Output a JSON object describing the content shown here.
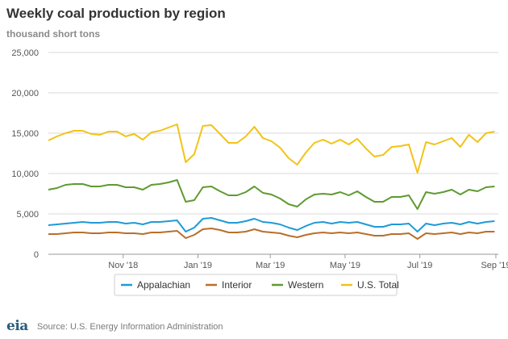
{
  "title": "Weekly coal production by region",
  "subtitle": "thousand short tons",
  "source": "Source: U.S. Energy Information Administration",
  "logo_text": "eia",
  "colors": {
    "Appalachian": "#1f9ad6",
    "Interior": "#b86f2b",
    "Western": "#5f9a32",
    "U.S. Total": "#f2c318",
    "grid": "#d9d9d9",
    "axis_text": "#555555"
  },
  "chart_data": {
    "type": "line",
    "xlabel": "",
    "ylabel": "",
    "ylim": [
      0,
      25000
    ],
    "y_ticks": [
      0,
      5000,
      10000,
      15000,
      20000,
      25000
    ],
    "y_tick_labels": [
      "0",
      "5,000",
      "10,000",
      "15,000",
      "20,000",
      "25,000"
    ],
    "x_ticks": [
      {
        "date": "2018-11-01",
        "label": "Nov '18"
      },
      {
        "date": "2019-01-01",
        "label": "Jan '19"
      },
      {
        "date": "2019-03-01",
        "label": "Mar '19"
      },
      {
        "date": "2019-05-01",
        "label": "May '19"
      },
      {
        "date": "2019-07-01",
        "label": "Jul '19"
      },
      {
        "date": "2019-09-01",
        "label": "Sep '19"
      }
    ],
    "x_range": [
      "2018-09-01",
      "2019-09-03"
    ],
    "grid": true,
    "legend_position": "bottom",
    "x": [
      "2018-09-01",
      "2018-09-08",
      "2018-09-15",
      "2018-09-22",
      "2018-09-29",
      "2018-10-06",
      "2018-10-13",
      "2018-10-20",
      "2018-10-27",
      "2018-11-03",
      "2018-11-10",
      "2018-11-17",
      "2018-11-24",
      "2018-12-01",
      "2018-12-08",
      "2018-12-15",
      "2018-12-22",
      "2018-12-29",
      "2019-01-05",
      "2019-01-12",
      "2019-01-19",
      "2019-01-26",
      "2019-02-02",
      "2019-02-09",
      "2019-02-16",
      "2019-02-23",
      "2019-03-02",
      "2019-03-09",
      "2019-03-16",
      "2019-03-23",
      "2019-03-30",
      "2019-04-06",
      "2019-04-13",
      "2019-04-20",
      "2019-04-27",
      "2019-05-04",
      "2019-05-11",
      "2019-05-18",
      "2019-05-25",
      "2019-06-01",
      "2019-06-08",
      "2019-06-15",
      "2019-06-22",
      "2019-06-29",
      "2019-07-06",
      "2019-07-13",
      "2019-07-20",
      "2019-07-27",
      "2019-08-03",
      "2019-08-10",
      "2019-08-17",
      "2019-08-24",
      "2019-08-31"
    ],
    "series": [
      {
        "name": "U.S. Total",
        "values": [
          14100,
          14600,
          15000,
          15300,
          15300,
          14900,
          14800,
          15200,
          15200,
          14600,
          14900,
          14200,
          15100,
          15300,
          15700,
          16100,
          11400,
          12400,
          15900,
          16000,
          14900,
          13800,
          13800,
          14600,
          15800,
          14400,
          14000,
          13200,
          11900,
          11100,
          12600,
          13800,
          14200,
          13700,
          14200,
          13600,
          14300,
          13100,
          12100,
          12300,
          13300,
          13400,
          13600,
          10100,
          13900,
          13600,
          14000,
          14400,
          13300,
          14800,
          13900,
          15000,
          15200
        ]
      },
      {
        "name": "Western",
        "values": [
          8000,
          8200,
          8600,
          8700,
          8700,
          8400,
          8400,
          8600,
          8600,
          8300,
          8300,
          8000,
          8600,
          8700,
          8900,
          9200,
          6500,
          6700,
          8300,
          8400,
          7800,
          7300,
          7300,
          7700,
          8400,
          7600,
          7400,
          6900,
          6200,
          5900,
          6800,
          7400,
          7500,
          7400,
          7700,
          7300,
          7800,
          7100,
          6500,
          6500,
          7100,
          7100,
          7300,
          5600,
          7700,
          7500,
          7700,
          8000,
          7400,
          8000,
          7800,
          8300,
          8400
        ]
      },
      {
        "name": "Appalachian",
        "values": [
          3600,
          3700,
          3800,
          3900,
          4000,
          3900,
          3900,
          4000,
          4000,
          3800,
          3900,
          3700,
          4000,
          4000,
          4100,
          4200,
          2800,
          3300,
          4400,
          4500,
          4200,
          3900,
          3900,
          4100,
          4400,
          4000,
          3900,
          3700,
          3300,
          3000,
          3500,
          3900,
          4000,
          3800,
          4000,
          3900,
          4000,
          3700,
          3400,
          3400,
          3700,
          3700,
          3800,
          2800,
          3800,
          3600,
          3800,
          3900,
          3700,
          4000,
          3800,
          4000,
          4100
        ]
      },
      {
        "name": "Interior",
        "values": [
          2500,
          2500,
          2600,
          2700,
          2700,
          2600,
          2600,
          2700,
          2700,
          2600,
          2600,
          2500,
          2700,
          2700,
          2800,
          2900,
          2000,
          2400,
          3100,
          3200,
          3000,
          2700,
          2700,
          2800,
          3100,
          2800,
          2700,
          2600,
          2300,
          2100,
          2400,
          2600,
          2700,
          2600,
          2700,
          2600,
          2700,
          2500,
          2300,
          2300,
          2500,
          2500,
          2600,
          1900,
          2600,
          2500,
          2600,
          2700,
          2500,
          2700,
          2600,
          2800,
          2800
        ]
      }
    ],
    "legend_order": [
      "Appalachian",
      "Interior",
      "Western",
      "U.S. Total"
    ]
  }
}
